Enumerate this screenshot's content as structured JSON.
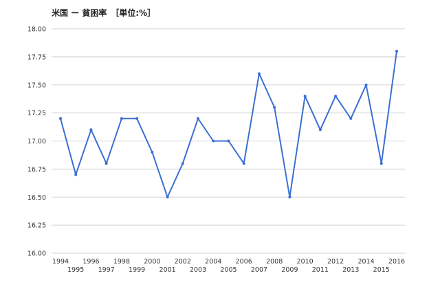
{
  "chart_data": {
    "type": "line",
    "title": "米国 ー 貧困率　［単位:%］",
    "xlabel": "",
    "ylabel": "",
    "x": [
      1994,
      1995,
      1996,
      1997,
      1998,
      1999,
      2000,
      2001,
      2002,
      2003,
      2004,
      2005,
      2006,
      2007,
      2008,
      2009,
      2010,
      2011,
      2012,
      2013,
      2014,
      2015,
      2016
    ],
    "values": [
      17.2,
      16.7,
      17.1,
      16.8,
      17.2,
      17.2,
      16.9,
      16.5,
      16.8,
      17.2,
      17.0,
      17.0,
      16.8,
      17.6,
      17.3,
      16.5,
      17.4,
      17.1,
      17.4,
      17.2,
      17.5,
      16.8,
      17.8
    ],
    "ylim": [
      16.0,
      18.0
    ],
    "yticks": [
      "16.00",
      "16.25",
      "16.50",
      "16.75",
      "17.00",
      "17.25",
      "17.50",
      "17.75",
      "18.00"
    ],
    "grid": true,
    "line_color": "#3b6fd4",
    "grid_color": "#d0d0d0"
  }
}
